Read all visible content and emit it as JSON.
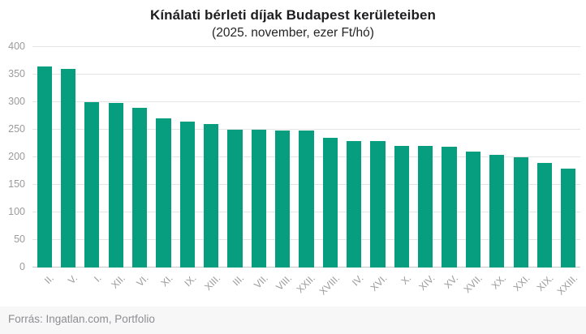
{
  "chart_data": {
    "type": "bar",
    "title": "Kínálati bérleti díjak Budapest kerületeiben",
    "subtitle": "(2025. november, ezer Ft/hó)",
    "categories": [
      "II.",
      "V.",
      "I.",
      "XII.",
      "VI.",
      "XI.",
      "IX.",
      "XIII.",
      "III.",
      "VII.",
      "VIII.",
      "XXII.",
      "XVIII.",
      "IV.",
      "XVI.",
      "X.",
      "XIV.",
      "XV.",
      "XVII.",
      "XX.",
      "XXI.",
      "XIX.",
      "XXIII."
    ],
    "values": [
      365,
      360,
      300,
      298,
      290,
      270,
      265,
      260,
      250,
      250,
      249,
      248,
      235,
      230,
      230,
      220,
      220,
      219,
      210,
      205,
      200,
      190,
      180
    ],
    "xlabel": "",
    "ylabel": "",
    "ylim": [
      0,
      400
    ],
    "yticks": [
      0,
      50,
      100,
      150,
      200,
      250,
      300,
      350,
      400
    ],
    "grid": true,
    "legend": false
  },
  "footer": {
    "source": "Forrás: Ingatlan.com, Portfolio"
  },
  "colors": {
    "bar": "#069e7e",
    "gridline": "#e4e4e4",
    "axis_line": "#c9c9c9",
    "tick_text": "#9b9b9b",
    "title_text": "#1d1d1f",
    "footer_text": "#8e8e93",
    "footer_bg": "#f7f7f7",
    "background": "#ffffff"
  }
}
